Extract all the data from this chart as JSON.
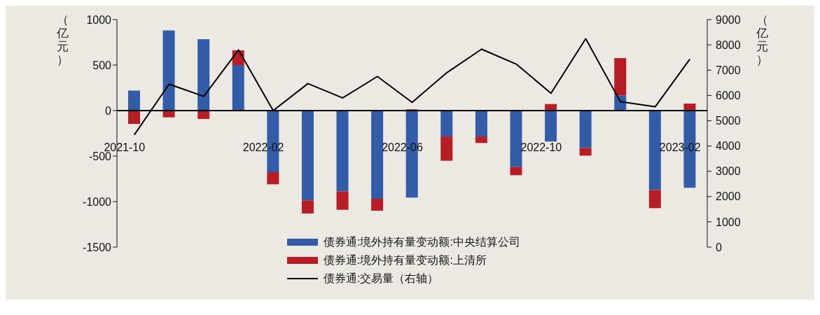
{
  "chart_data": {
    "type": "bar",
    "stacked": true,
    "ylabel": "（亿元）",
    "y2label": "（亿元）",
    "categories": [
      "2021-10",
      null,
      null,
      null,
      "2022-02",
      null,
      null,
      null,
      "2022-06",
      null,
      null,
      null,
      "2022-10",
      null,
      null,
      null,
      "2023-02"
    ],
    "series": [
      {
        "name": "债券通:境外持有量变动额:中央结算公司",
        "color": "#325ca8",
        "values": [
          220,
          880,
          785,
          500,
          -677,
          -987,
          -887,
          -969,
          -956,
          -285,
          -285,
          -621,
          -340,
          -410,
          167,
          -872,
          -849
        ]
      },
      {
        "name": "债券通:境外持有量变动额:上清所",
        "color": "#b81c25",
        "values": [
          -146,
          -74,
          -92,
          162,
          -133,
          -144,
          -203,
          -131,
          15,
          -266,
          -71,
          -89,
          72,
          -85,
          410,
          -200,
          77
        ]
      },
      {
        "name": "债券通:交易量（右轴）",
        "type": "line",
        "axis": "y2",
        "color": "#000000",
        "values": [
          4440,
          6445,
          5965,
          7800,
          5400,
          6470,
          5900,
          6750,
          5725,
          6900,
          7830,
          7240,
          6085,
          8245,
          5750,
          5550,
          7440
        ]
      }
    ],
    "ylim": [
      -1500,
      1000
    ],
    "yticks": [
      -1500,
      -1000,
      -500,
      0,
      500,
      1000
    ],
    "y2lim": [
      0,
      9000
    ],
    "y2ticks": [
      0,
      1000,
      2000,
      3000,
      4000,
      5000,
      6000,
      7000,
      8000,
      9000
    ],
    "ref_lines": [
      {
        "axis": "y",
        "value": 0,
        "color": "#000000"
      }
    ],
    "legend": "bottom",
    "grid": false,
    "marker": "none",
    "line_style": "solid"
  }
}
